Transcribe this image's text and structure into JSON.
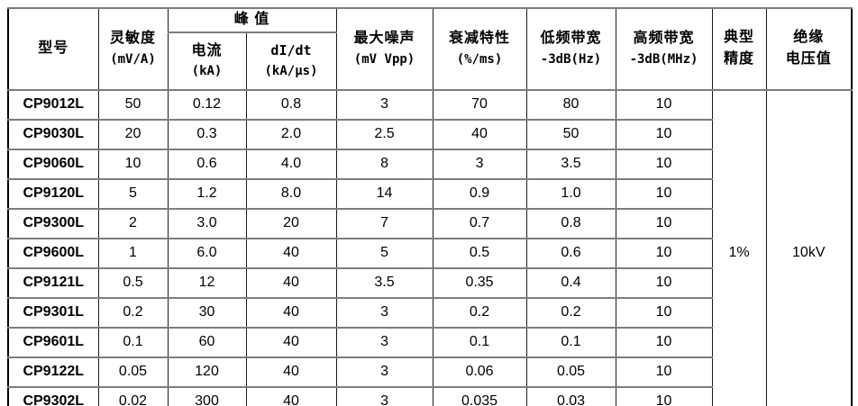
{
  "table": {
    "headers": {
      "model": "型号",
      "sensitivity_line1": "灵敏度",
      "sensitivity_line2": "(mV/A)",
      "peak": "峰  值",
      "current_line1": "电流",
      "current_line2": "(kA)",
      "didt_line1": "dI/dt",
      "didt_line2": "(kA/μs)",
      "noise_line1": "最大噪声",
      "noise_line2": "(mV Vpp)",
      "attenuation_line1": "衰减特性",
      "attenuation_line2": "(%/ms)",
      "low_bw_line1": "低频带宽",
      "low_bw_line2": "-3dB(Hz)",
      "high_bw_line1": "高频带宽",
      "high_bw_line2": "-3dB(MHz)",
      "accuracy_line1": "典型",
      "accuracy_line2": "精度",
      "insulation_line1": "绝缘",
      "insulation_line2": "电压值"
    },
    "merged": {
      "typical_accuracy": "1%",
      "insulation_voltage": "10kV"
    },
    "rows": [
      {
        "model": "CP9012L",
        "sensitivity": "50",
        "current": "0.12",
        "didt": "0.8",
        "noise": "3",
        "attenuation": "70",
        "low_bw": "80",
        "high_bw": "10"
      },
      {
        "model": "CP9030L",
        "sensitivity": "20",
        "current": "0.3",
        "didt": "2.0",
        "noise": "2.5",
        "attenuation": "40",
        "low_bw": "50",
        "high_bw": "10"
      },
      {
        "model": "CP9060L",
        "sensitivity": "10",
        "current": "0.6",
        "didt": "4.0",
        "noise": "8",
        "attenuation": "3",
        "low_bw": "3.5",
        "high_bw": "10"
      },
      {
        "model": "CP9120L",
        "sensitivity": "5",
        "current": "1.2",
        "didt": "8.0",
        "noise": "14",
        "attenuation": "0.9",
        "low_bw": "1.0",
        "high_bw": "10"
      },
      {
        "model": "CP9300L",
        "sensitivity": "2",
        "current": "3.0",
        "didt": "20",
        "noise": "7",
        "attenuation": "0.7",
        "low_bw": "0.8",
        "high_bw": "10"
      },
      {
        "model": "CP9600L",
        "sensitivity": "1",
        "current": "6.0",
        "didt": "40",
        "noise": "5",
        "attenuation": "0.5",
        "low_bw": "0.6",
        "high_bw": "10"
      },
      {
        "model": "CP9121L",
        "sensitivity": "0.5",
        "current": "12",
        "didt": "40",
        "noise": "3.5",
        "attenuation": "0.35",
        "low_bw": "0.4",
        "high_bw": "10"
      },
      {
        "model": "CP9301L",
        "sensitivity": "0.2",
        "current": "30",
        "didt": "40",
        "noise": "3",
        "attenuation": "0.2",
        "low_bw": "0.2",
        "high_bw": "10"
      },
      {
        "model": "CP9601L",
        "sensitivity": "0.1",
        "current": "60",
        "didt": "40",
        "noise": "3",
        "attenuation": "0.1",
        "low_bw": "0.1",
        "high_bw": "10"
      },
      {
        "model": "CP9122L",
        "sensitivity": "0.05",
        "current": "120",
        "didt": "40",
        "noise": "3",
        "attenuation": "0.06",
        "low_bw": "0.05",
        "high_bw": "10"
      },
      {
        "model": "CP9302L",
        "sensitivity": "0.02",
        "current": "300",
        "didt": "40",
        "noise": "3",
        "attenuation": "0.035",
        "low_bw": "0.03",
        "high_bw": "10"
      }
    ]
  },
  "colors": {
    "background": "#ffffff",
    "text": "#000000",
    "border_outer": "#000000",
    "border_vertical": "#1a1a1a",
    "border_horizontal": "#7d7d7d"
  }
}
